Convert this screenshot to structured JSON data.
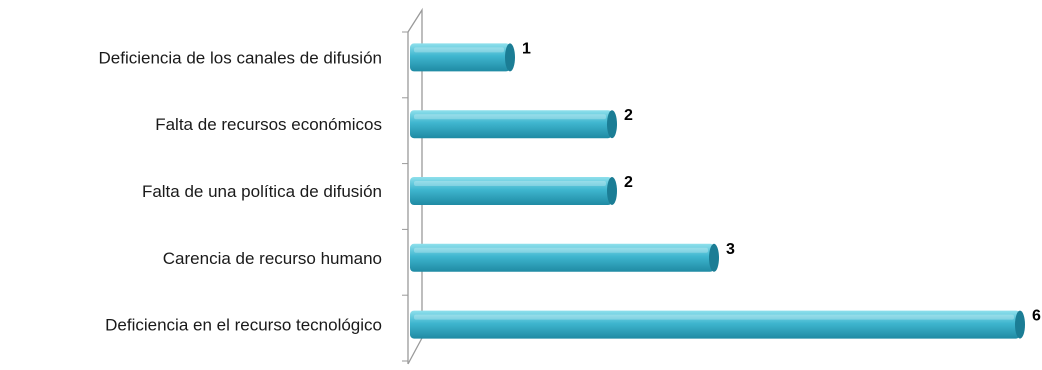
{
  "chart_data": {
    "type": "bar",
    "orientation": "horizontal",
    "style": "3d-cylinder",
    "categories": [
      "Deficiencia de los canales de difusión",
      "Falta de recursos económicos",
      "Falta de una política de difusión",
      "Carencia de recurso humano",
      "Deficiencia en el recurso tecnológico"
    ],
    "values": [
      1,
      2,
      2,
      3,
      6
    ],
    "value_labels": [
      "1",
      "2",
      "2",
      "3",
      "6"
    ],
    "xlim": [
      0,
      6
    ],
    "grid": false,
    "legend": "none",
    "colors": {
      "bar_light": "#8fe0ec",
      "bar_mid": "#3fb6cf",
      "bar_dark": "#1f8aa3",
      "bar_cap": "#1b7d95",
      "axis": "#9a9a9a"
    }
  }
}
